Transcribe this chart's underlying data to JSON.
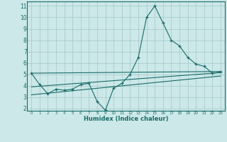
{
  "xlabel": "Humidex (Indice chaleur)",
  "bg_color": "#cce8e8",
  "grid_color": "#aacccc",
  "line_color": "#1a6b6b",
  "xlim": [
    -0.5,
    23.5
  ],
  "ylim": [
    1.8,
    11.4
  ],
  "xticks": [
    0,
    1,
    2,
    3,
    4,
    5,
    6,
    7,
    8,
    9,
    10,
    11,
    12,
    13,
    14,
    15,
    16,
    17,
    18,
    19,
    20,
    21,
    22,
    23
  ],
  "yticks": [
    2,
    3,
    4,
    5,
    6,
    7,
    8,
    9,
    10,
    11
  ],
  "line1_x": [
    0,
    1,
    2,
    3,
    4,
    5,
    6,
    7,
    8,
    9,
    10,
    11,
    12,
    13,
    14,
    15,
    16,
    17,
    18,
    19,
    20,
    21,
    22,
    23
  ],
  "line1_y": [
    5.1,
    4.1,
    3.3,
    3.7,
    3.6,
    3.7,
    4.1,
    4.2,
    2.6,
    1.85,
    3.8,
    4.2,
    5.0,
    6.5,
    10.0,
    11.0,
    9.5,
    8.0,
    7.5,
    6.5,
    5.9,
    5.7,
    5.1,
    5.2
  ],
  "line2_x": [
    0,
    23
  ],
  "line2_y": [
    5.1,
    5.25
  ],
  "line3_x": [
    0,
    23
  ],
  "line3_y": [
    3.9,
    5.15
  ],
  "line4_x": [
    0,
    23
  ],
  "line4_y": [
    3.2,
    4.85
  ]
}
